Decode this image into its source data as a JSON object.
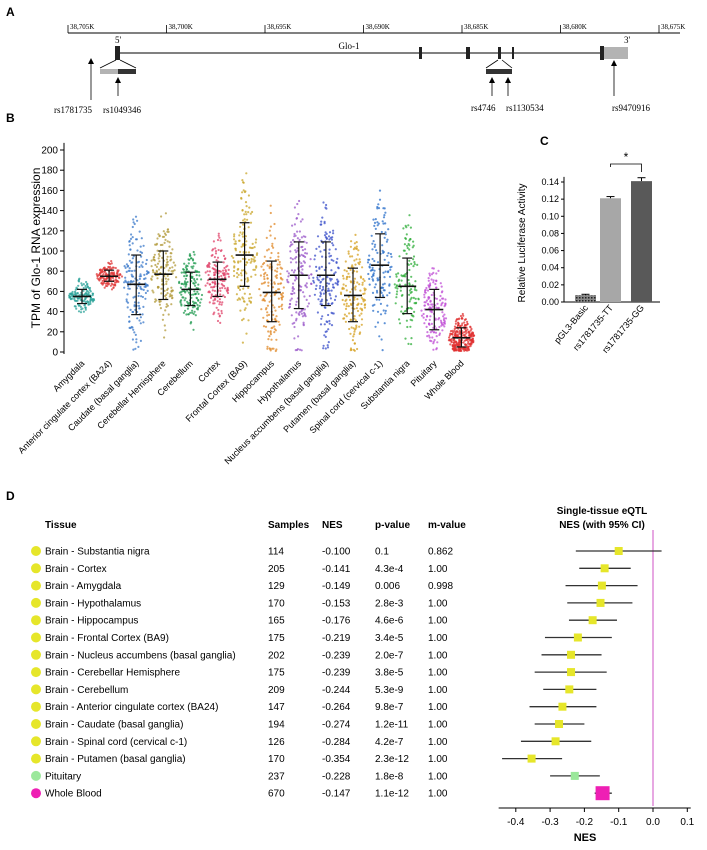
{
  "panels": {
    "A": "A",
    "B": "B",
    "C": "C",
    "D": "D"
  },
  "chart_data": [
    {
      "panel": "A",
      "type": "gene-map",
      "ruler_ticks": [
        "38,705K",
        "38,700K",
        "38,695K",
        "38,690K",
        "38,685K",
        "38,680K",
        "38,675K"
      ],
      "gene_label": "Glo-1",
      "five_prime": "5'",
      "three_prime": "3'",
      "snps": [
        "rs1781735",
        "rs1049346",
        "rs4746",
        "rs1130534",
        "rs9470916"
      ]
    },
    {
      "panel": "B",
      "type": "scatter",
      "ylabel": "TPM of Glo-1 RNA expression",
      "xlabel": "",
      "ylim": [
        0,
        200
      ],
      "yticks": [
        0,
        20,
        40,
        60,
        80,
        100,
        120,
        140,
        160,
        180,
        200
      ],
      "categories": [
        "Amygdala",
        "Anterior cingulate cortex (BA24)",
        "Caudate (basal ganglia)",
        "Cerebellar Hemisphere",
        "Cerebellum",
        "Cortex",
        "Frontal Cortex (BA9)",
        "Hippocampus",
        "Hypothalamus",
        "Nucleus accumbens (basal ganglia)",
        "Putamen (basal ganglia)",
        "Spinal cord (cervical c-1)",
        "Substantia nigra",
        "Pituitary",
        "Whole Blood"
      ],
      "colors": [
        "#2aa198",
        "#e03a3a",
        "#3a78c9",
        "#b39b3c",
        "#1f9a4f",
        "#e0436a",
        "#c9a52a",
        "#e0892a",
        "#9b59c9",
        "#3a4fc9",
        "#d6a020",
        "#2a6fc9",
        "#2fae3a",
        "#c04fd6",
        "#e03030"
      ],
      "mean": [
        55,
        75,
        67,
        77,
        62,
        72,
        96,
        59,
        76,
        76,
        56,
        86,
        65,
        42,
        14
      ],
      "sd_low": [
        48,
        70,
        37,
        52,
        46,
        55,
        65,
        30,
        43,
        46,
        30,
        54,
        38,
        22,
        5
      ],
      "sd_high": [
        62,
        81,
        96,
        100,
        79,
        89,
        128,
        90,
        109,
        109,
        83,
        117,
        93,
        62,
        24
      ],
      "n": [
        129,
        147,
        194,
        175,
        209,
        205,
        175,
        165,
        170,
        202,
        170,
        126,
        114,
        237,
        670
      ]
    },
    {
      "panel": "C",
      "type": "bar",
      "ylabel": "Relative Luciferase Activity",
      "ylim": [
        0,
        0.14
      ],
      "yticks": [
        "0.00",
        "0.02",
        "0.04",
        "0.06",
        "0.08",
        "0.10",
        "0.12",
        "0.14"
      ],
      "categories": [
        "pGL3-Basic",
        "rs1781735-TT",
        "rs1781735-GG"
      ],
      "values": [
        0.008,
        0.121,
        0.141
      ],
      "errors": [
        0.001,
        0.002,
        0.004
      ],
      "significance": "*"
    },
    {
      "panel": "D",
      "type": "forest",
      "headers": {
        "tissue": "Tissue",
        "samples": "Samples",
        "nes": "NES",
        "pvalue": "p-value",
        "mvalue": "m-value"
      },
      "plot_title_line1": "Single-tissue eQTL",
      "plot_title_line2": "NES (with 95% CI)",
      "xlabel": "NES",
      "xlim": [
        -0.45,
        0.1
      ],
      "xticks": [
        "-0.4",
        "-0.3",
        "-0.2",
        "-0.1",
        "0.0",
        "0.1"
      ],
      "rows": [
        {
          "tissue": "Brain - Substantia nigra",
          "samples": "114",
          "nes": "-0.100",
          "pvalue": "0.1",
          "mvalue": "0.862",
          "nes_value": -0.1,
          "ci": [
            -0.225,
            0.025
          ],
          "color": "#e6e62a"
        },
        {
          "tissue": "Brain - Cortex",
          "samples": "205",
          "nes": "-0.141",
          "pvalue": "4.3e-4",
          "mvalue": "1.00",
          "nes_value": -0.141,
          "ci": [
            -0.215,
            -0.065
          ],
          "color": "#e6e62a"
        },
        {
          "tissue": "Brain - Amygdala",
          "samples": "129",
          "nes": "-0.149",
          "pvalue": "0.006",
          "mvalue": "0.998",
          "nes_value": -0.149,
          "ci": [
            -0.255,
            -0.045
          ],
          "color": "#e6e62a"
        },
        {
          "tissue": "Brain - Hypothalamus",
          "samples": "170",
          "nes": "-0.153",
          "pvalue": "2.8e-3",
          "mvalue": "1.00",
          "nes_value": -0.153,
          "ci": [
            -0.25,
            -0.06
          ],
          "color": "#e6e62a"
        },
        {
          "tissue": "Brain - Hippocampus",
          "samples": "165",
          "nes": "-0.176",
          "pvalue": "4.6e-6",
          "mvalue": "1.00",
          "nes_value": -0.176,
          "ci": [
            -0.245,
            -0.105
          ],
          "color": "#e6e62a"
        },
        {
          "tissue": "Brain - Frontal Cortex (BA9)",
          "samples": "175",
          "nes": "-0.219",
          "pvalue": "3.4e-5",
          "mvalue": "1.00",
          "nes_value": -0.219,
          "ci": [
            -0.315,
            -0.12
          ],
          "color": "#e6e62a"
        },
        {
          "tissue": "Brain - Nucleus accumbens (basal ganglia)",
          "samples": "202",
          "nes": "-0.239",
          "pvalue": "2.0e-7",
          "mvalue": "1.00",
          "nes_value": -0.239,
          "ci": [
            -0.325,
            -0.15
          ],
          "color": "#e6e62a"
        },
        {
          "tissue": "Brain - Cerebellar Hemisphere",
          "samples": "175",
          "nes": "-0.239",
          "pvalue": "3.8e-5",
          "mvalue": "1.00",
          "nes_value": -0.239,
          "ci": [
            -0.345,
            -0.135
          ],
          "color": "#e6e62a"
        },
        {
          "tissue": "Brain - Cerebellum",
          "samples": "209",
          "nes": "-0.244",
          "pvalue": "5.3e-9",
          "mvalue": "1.00",
          "nes_value": -0.244,
          "ci": [
            -0.32,
            -0.165
          ],
          "color": "#e6e62a"
        },
        {
          "tissue": "Brain - Anterior cingulate cortex (BA24)",
          "samples": "147",
          "nes": "-0.264",
          "pvalue": "9.8e-7",
          "mvalue": "1.00",
          "nes_value": -0.264,
          "ci": [
            -0.36,
            -0.165
          ],
          "color": "#e6e62a"
        },
        {
          "tissue": "Brain - Caudate (basal ganglia)",
          "samples": "194",
          "nes": "-0.274",
          "pvalue": "1.2e-11",
          "mvalue": "1.00",
          "nes_value": -0.274,
          "ci": [
            -0.345,
            -0.2
          ],
          "color": "#e6e62a"
        },
        {
          "tissue": "Brain - Spinal cord (cervical c-1)",
          "samples": "126",
          "nes": "-0.284",
          "pvalue": "4.2e-7",
          "mvalue": "1.00",
          "nes_value": -0.284,
          "ci": [
            -0.385,
            -0.18
          ],
          "color": "#e6e62a"
        },
        {
          "tissue": "Brain - Putamen (basal ganglia)",
          "samples": "170",
          "nes": "-0.354",
          "pvalue": "2.3e-12",
          "mvalue": "1.00",
          "nes_value": -0.354,
          "ci": [
            -0.44,
            -0.265
          ],
          "color": "#e6e62a"
        },
        {
          "tissue": "Pituitary",
          "samples": "237",
          "nes": "-0.228",
          "pvalue": "1.8e-8",
          "mvalue": "1.00",
          "nes_value": -0.228,
          "ci": [
            -0.3,
            -0.155
          ],
          "color": "#9be89b"
        },
        {
          "tissue": "Whole Blood",
          "samples": "670",
          "nes": "-0.147",
          "pvalue": "1.1e-12",
          "mvalue": "1.00",
          "nes_value": -0.147,
          "ci": [
            -0.17,
            -0.12
          ],
          "color": "#ee1fb4"
        }
      ]
    }
  ]
}
